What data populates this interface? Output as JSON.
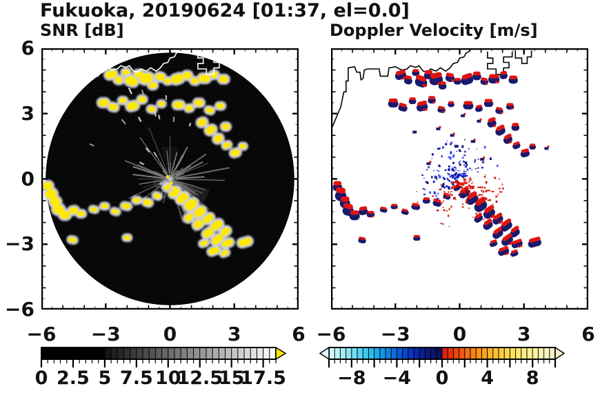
{
  "title": "Fukuoka, 20190624 [01:37, el=0.0]",
  "chart_data": [
    {
      "type": "heatmap",
      "panel": "snr",
      "title": "SNR [dB]",
      "x_range": [
        -6,
        6
      ],
      "y_range": [
        -6,
        6
      ],
      "x_tick_values": [
        -6,
        -3,
        0,
        3,
        6
      ],
      "x_tick_labels": [
        "−6",
        "−3",
        "0",
        "3",
        "6"
      ],
      "y_tick_values": [
        6,
        3,
        0,
        -3,
        -6
      ],
      "y_tick_labels": [
        "6",
        "3",
        "0",
        "−3",
        "−6"
      ],
      "background": "#ffffff",
      "disk_color": "#060606",
      "disk_radius": 5.8,
      "echo_color": "#ffe900",
      "halo_color": "#d9d9d9",
      "coast_color": "#ffffff",
      "colorbar": {
        "range": [
          0,
          18.5
        ],
        "tick_label_values": [
          0,
          2.5,
          5,
          7.5,
          10,
          12.5,
          15,
          17.5
        ],
        "tick_labels": [
          "0",
          "2.5",
          "5",
          "7.5",
          "10",
          "12.5",
          "15",
          "17.5"
        ],
        "solid_black_below": 5,
        "ramp": [
          "#121212",
          "#ffffff"
        ],
        "overflow_arrow_color": "#ffe900"
      }
    },
    {
      "type": "heatmap",
      "panel": "velocity",
      "title": "Doppler Velocity [m/s]",
      "x_range": [
        -6,
        6
      ],
      "y_range": [
        -6,
        6
      ],
      "x_tick_values": [
        -6,
        -3,
        0,
        3,
        6
      ],
      "x_tick_labels": [
        "−6",
        "−3",
        "0",
        "3",
        "6"
      ],
      "background": "#ffffff",
      "coast_color": "#000000",
      "negative_color": "#181a6e",
      "positive_color": "#dd1510",
      "colorbar": {
        "range": [
          -10,
          10
        ],
        "tick_label_values": [
          -8,
          -4,
          0,
          4,
          8
        ],
        "tick_labels": [
          "−8",
          "−4",
          "0",
          "4",
          "8"
        ],
        "neg_stops": [
          "#dcfafa",
          "#b2f0f4",
          "#7fe3f2",
          "#4cd0f0",
          "#1fb6ec",
          "#0e8ee4",
          "#0b63da",
          "#0a3cc8",
          "#0920a0",
          "#0a1670",
          "#0c104e"
        ],
        "pos_stops": [
          "#e0180e",
          "#ea3c0e",
          "#f36312",
          "#f98c18",
          "#feac24",
          "#ffc63a",
          "#ffdc55",
          "#ffea78",
          "#fff49e",
          "#fbf7bc",
          "#f6f4c8"
        ],
        "left_arrow_color": "#dcfafa",
        "right_arrow_color": "#f6f4c8"
      }
    }
  ],
  "echoes": {
    "blobs": [
      [
        -2.75,
        4.8,
        0.5,
        0.32,
        -15
      ],
      [
        -2.4,
        4.55,
        0.35,
        0.28,
        10
      ],
      [
        -2.05,
        4.9,
        0.32,
        0.22,
        0
      ],
      [
        -1.8,
        4.5,
        0.55,
        0.38,
        20
      ],
      [
        -1.45,
        4.8,
        0.4,
        0.3,
        0
      ],
      [
        -1.1,
        4.62,
        0.6,
        0.42,
        -12
      ],
      [
        -0.8,
        4.3,
        0.34,
        0.26,
        0
      ],
      [
        -0.45,
        4.68,
        0.4,
        0.3,
        15
      ],
      [
        -0.1,
        4.5,
        0.32,
        0.22,
        0
      ],
      [
        0.35,
        4.6,
        0.55,
        0.36,
        -18
      ],
      [
        0.8,
        4.75,
        0.38,
        0.3,
        0
      ],
      [
        1.15,
        4.5,
        0.34,
        0.24,
        12
      ],
      [
        1.6,
        4.62,
        0.5,
        0.32,
        0
      ],
      [
        2.05,
        4.78,
        0.34,
        0.26,
        -10
      ],
      [
        2.5,
        4.58,
        0.4,
        0.28,
        0
      ],
      [
        -3.1,
        3.5,
        0.45,
        0.3,
        0
      ],
      [
        -2.65,
        3.3,
        0.4,
        0.26,
        14
      ],
      [
        -2.2,
        3.6,
        0.32,
        0.22,
        0
      ],
      [
        -1.75,
        3.35,
        0.5,
        0.32,
        -14
      ],
      [
        -1.3,
        3.65,
        0.34,
        0.26,
        0
      ],
      [
        -0.85,
        3.2,
        0.34,
        0.22,
        10
      ],
      [
        -0.4,
        3.45,
        0.28,
        0.2,
        0
      ],
      [
        0.4,
        3.4,
        0.45,
        0.28,
        0
      ],
      [
        0.9,
        3.25,
        0.32,
        0.22,
        -10
      ],
      [
        1.35,
        3.5,
        0.4,
        0.26,
        0
      ],
      [
        1.85,
        3.15,
        0.34,
        0.22,
        14
      ],
      [
        2.35,
        3.35,
        0.34,
        0.22,
        0
      ],
      [
        1.5,
        2.6,
        0.4,
        0.3,
        -20
      ],
      [
        1.9,
        2.25,
        0.45,
        0.32,
        -28
      ],
      [
        2.25,
        1.85,
        0.4,
        0.3,
        -30
      ],
      [
        2.6,
        2.4,
        0.34,
        0.26,
        0
      ],
      [
        2.65,
        1.55,
        0.34,
        0.22,
        -20
      ],
      [
        3.05,
        1.2,
        0.4,
        0.26,
        -15
      ],
      [
        3.4,
        1.5,
        0.28,
        0.2,
        0
      ],
      [
        -0.12,
        -0.38,
        0.32,
        0.2,
        -35
      ],
      [
        0.22,
        -0.62,
        0.5,
        0.3,
        -35
      ],
      [
        0.58,
        -0.88,
        0.55,
        0.36,
        -35
      ],
      [
        0.98,
        -1.18,
        0.6,
        0.4,
        -35
      ],
      [
        1.38,
        -1.52,
        0.55,
        0.36,
        -35
      ],
      [
        1.78,
        -1.82,
        0.5,
        0.3,
        -35
      ],
      [
        2.18,
        -2.12,
        0.55,
        0.32,
        -35
      ],
      [
        2.58,
        -2.42,
        0.45,
        0.3,
        -35
      ],
      [
        0.88,
        -1.78,
        0.4,
        0.26,
        -35
      ],
      [
        1.32,
        -2.08,
        0.45,
        0.3,
        -35
      ],
      [
        1.78,
        -2.48,
        0.5,
        0.3,
        -35
      ],
      [
        2.22,
        -2.78,
        0.55,
        0.32,
        -35
      ],
      [
        2.68,
        -2.95,
        0.5,
        0.26,
        -20
      ],
      [
        1.58,
        -2.95,
        0.34,
        0.2,
        -20
      ],
      [
        2.05,
        -3.3,
        0.5,
        0.26,
        -20
      ],
      [
        2.55,
        -3.4,
        0.34,
        0.2,
        -20
      ],
      [
        3.5,
        -2.9,
        0.6,
        0.3,
        -15
      ],
      [
        -0.6,
        -0.78,
        0.32,
        0.2,
        20
      ],
      [
        -1.05,
        -1.08,
        0.38,
        0.24,
        15
      ],
      [
        -1.55,
        -0.98,
        0.32,
        0.2,
        0
      ],
      [
        -2.05,
        -1.25,
        0.38,
        0.22,
        10
      ],
      [
        -2.55,
        -1.5,
        0.32,
        0.18,
        15
      ],
      [
        -3.05,
        -1.25,
        0.3,
        0.18,
        0
      ],
      [
        -3.55,
        -1.4,
        0.32,
        0.18,
        10
      ],
      [
        -2.0,
        -2.7,
        0.3,
        0.18,
        0
      ],
      [
        -4.55,
        -2.8,
        0.34,
        0.2,
        10
      ],
      [
        -5.7,
        -0.32,
        0.4,
        0.34,
        0
      ],
      [
        -5.55,
        -0.7,
        0.5,
        0.45,
        10
      ],
      [
        -5.35,
        -1.05,
        0.45,
        0.4,
        0
      ],
      [
        -5.2,
        -1.4,
        0.5,
        0.4,
        15
      ],
      [
        -4.9,
        -1.65,
        0.45,
        0.34,
        0
      ],
      [
        -4.5,
        -1.45,
        0.4,
        0.28,
        -10
      ],
      [
        -4.15,
        -1.6,
        0.34,
        0.22,
        0
      ]
    ],
    "small_marks": [
      [
        0.15,
        2.9
      ],
      [
        -0.35,
        2.0
      ],
      [
        0.62,
        1.72
      ],
      [
        -1.0,
        2.3
      ],
      [
        4.05,
        1.4
      ],
      [
        -1.45,
        0.7
      ],
      [
        0.9,
        2.65
      ],
      [
        -2.1,
        2.15
      ],
      [
        -0.15,
        1.5
      ],
      [
        1.05,
        0.9
      ]
    ]
  },
  "coastline": {
    "main": [
      [
        -6,
        2.25
      ],
      [
        -5.55,
        3.3
      ],
      [
        -5.4,
        4.0
      ],
      [
        -5.3,
        4.0
      ],
      [
        -5.3,
        4.5
      ],
      [
        -5.2,
        4.5
      ],
      [
        -5.2,
        5.1
      ],
      [
        -4.9,
        5.15
      ],
      [
        -4.8,
        4.9
      ],
      [
        -4.65,
        4.9
      ],
      [
        -4.6,
        4.55
      ],
      [
        -4.5,
        4.62
      ],
      [
        -4.45,
        5.0
      ],
      [
        -4.3,
        5.05
      ],
      [
        -3.75,
        5.05
      ],
      [
        -3.7,
        4.72
      ],
      [
        -3.35,
        4.72
      ],
      [
        -3.3,
        5.1
      ],
      [
        -3.0,
        5.15
      ],
      [
        -2.7,
        5.0
      ],
      [
        -2.45,
        5.05
      ],
      [
        -2.3,
        5.2
      ],
      [
        -2.05,
        5.12
      ],
      [
        -1.9,
        5.2
      ],
      [
        -1.7,
        4.95
      ],
      [
        -1.5,
        4.9
      ],
      [
        -1.35,
        5.05
      ],
      [
        -1.1,
        4.95
      ],
      [
        -0.9,
        5.1
      ],
      [
        -0.65,
        4.95
      ],
      [
        -0.45,
        5.1
      ],
      [
        -0.3,
        5.3
      ],
      [
        -0.1,
        5.35
      ],
      [
        0.0,
        5.55
      ],
      [
        0.2,
        5.6
      ],
      [
        0.3,
        5.78
      ],
      [
        0.45,
        5.85
      ],
      [
        0.5,
        6.0
      ]
    ],
    "harbors": [
      [
        [
          1.3,
          5.85
        ],
        [
          1.3,
          5.55
        ],
        [
          1.55,
          5.55
        ],
        [
          1.55,
          5.3
        ],
        [
          1.3,
          5.3
        ],
        [
          1.3,
          5.05
        ],
        [
          1.7,
          5.05
        ],
        [
          1.7,
          4.8
        ],
        [
          2.05,
          4.8
        ],
        [
          2.05,
          5.1
        ],
        [
          2.3,
          5.1
        ],
        [
          2.3,
          5.35
        ],
        [
          2.05,
          5.35
        ],
        [
          2.05,
          5.6
        ],
        [
          2.45,
          5.6
        ],
        [
          2.45,
          5.85
        ]
      ],
      [
        [
          2.6,
          5.9
        ],
        [
          2.6,
          5.55
        ],
        [
          2.9,
          5.55
        ],
        [
          2.9,
          5.3
        ],
        [
          3.15,
          5.3
        ],
        [
          3.15,
          5.6
        ],
        [
          3.35,
          5.6
        ],
        [
          3.35,
          5.9
        ]
      ]
    ]
  }
}
